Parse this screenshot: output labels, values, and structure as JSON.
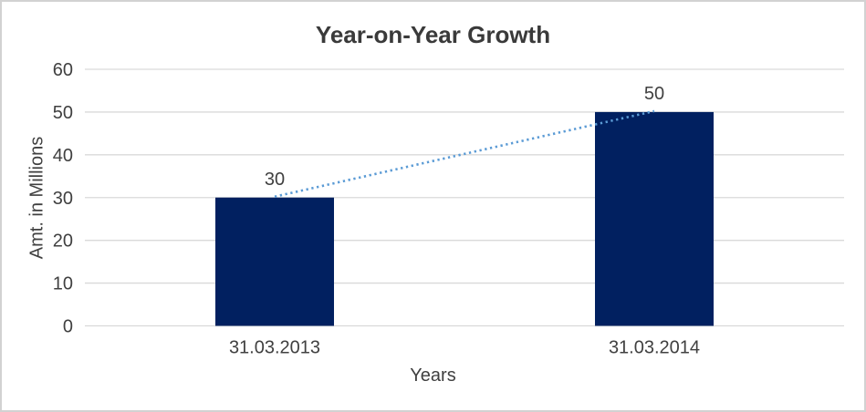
{
  "chart_data": {
    "type": "bar",
    "title": "Year-on-Year Growth",
    "xlabel": "Years",
    "ylabel": "Amt. in Millions",
    "categories": [
      "31.03.2013",
      "31.03.2014"
    ],
    "values": [
      30,
      50
    ],
    "data_labels": [
      "30",
      "50"
    ],
    "ylim": [
      0,
      60
    ],
    "ytick_step": 10,
    "ytick_labels": [
      "0",
      "10",
      "20",
      "30",
      "40",
      "50",
      "60"
    ],
    "grid": true,
    "legend": "none",
    "trendline": {
      "style": "dotted",
      "color": "#5B9BD5",
      "connects": [
        "31.03.2013",
        "31.03.2014"
      ]
    },
    "colors": {
      "bar": "#012060",
      "gridline": "#D9D9D9",
      "text": "#404040",
      "title": "#3A3A3A",
      "frame_border": "#D2D2D2",
      "background": "#FFFFFF"
    }
  }
}
